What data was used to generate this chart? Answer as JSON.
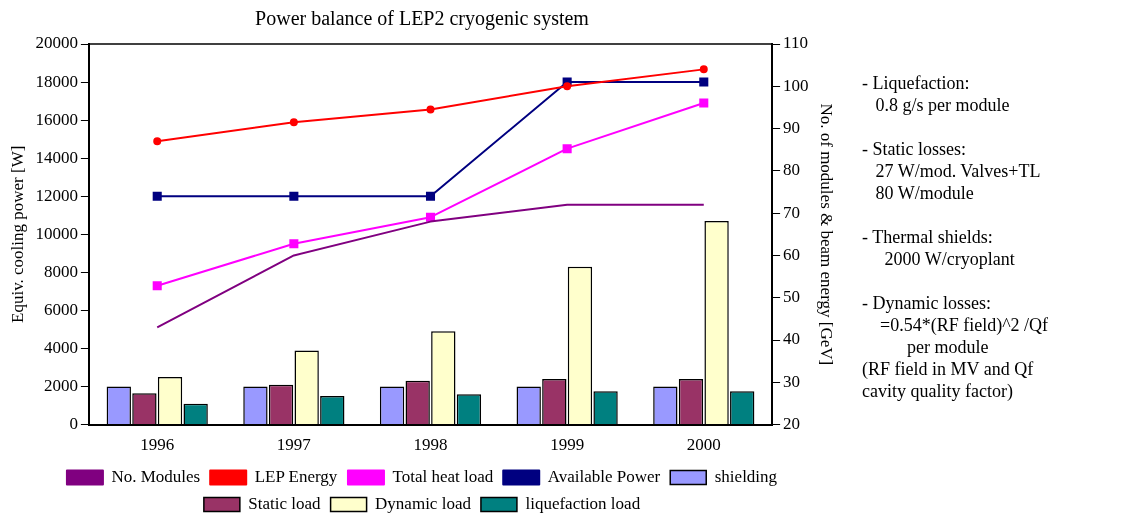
{
  "chart_data": {
    "type": "bar",
    "title": "Power balance of LEP2 cryogenic system",
    "ylabel": "Equiv. cooling power [W]",
    "y2label": "No. of modules & beam energy [GeV]",
    "categories": [
      "1996",
      "1997",
      "1998",
      "1999",
      "2000"
    ],
    "series": [
      {
        "name": "shielding",
        "color": "#9999ff",
        "values": [
          2000,
          2000,
          2000,
          2000,
          2000
        ]
      },
      {
        "name": "Static load",
        "color": "#993366",
        "values": [
          1650,
          2100,
          2300,
          2400,
          2400
        ]
      },
      {
        "name": "Dynamic load",
        "color": "#ffffcc",
        "values": [
          2500,
          3900,
          4900,
          8300,
          10700
        ]
      },
      {
        "name": "liquefaction load",
        "color": "#008080",
        "values": [
          1100,
          1500,
          1600,
          1750,
          1750
        ]
      },
      {
        "name": "No. Modules",
        "type": "line",
        "axis": "y2",
        "color": "#800080",
        "marker": "none",
        "values": [
          43,
          60,
          68,
          72,
          72
        ]
      },
      {
        "name": "LEP Energy",
        "type": "line",
        "axis": "y2",
        "color": "#ff0000",
        "marker": "circle",
        "values": [
          87,
          91.5,
          94.5,
          100,
          104
        ]
      },
      {
        "name": "Total heat load",
        "type": "line",
        "color": "#ff00ff",
        "marker": "square",
        "values": [
          7300,
          9500,
          10900,
          14500,
          16900
        ]
      },
      {
        "name": "Available Power",
        "type": "line",
        "color": "#000080",
        "marker": "square",
        "values": [
          12000,
          12000,
          12000,
          18000,
          18000
        ]
      }
    ],
    "ylim": [
      0,
      20000
    ],
    "yticks": [
      0,
      2000,
      4000,
      6000,
      8000,
      10000,
      12000,
      14000,
      16000,
      18000,
      20000
    ],
    "y2lim": [
      20,
      110
    ],
    "y2ticks": [
      20,
      30,
      40,
      50,
      60,
      70,
      80,
      90,
      100,
      110
    ],
    "grid": false,
    "legend": "bottom",
    "annotations": [
      "- Liquefaction:\n   0.8 g/s per module",
      "- Static losses:\n   27 W/mod. Valves+TL\n   80 W/module",
      "- Thermal shields:\n     2000 W/cryoplant",
      "- Dynamic losses:\n    =0.54*(RF field)^2 /Qf\n          per module\n(RF field in MV and Qf\ncavity quality factor)"
    ]
  }
}
